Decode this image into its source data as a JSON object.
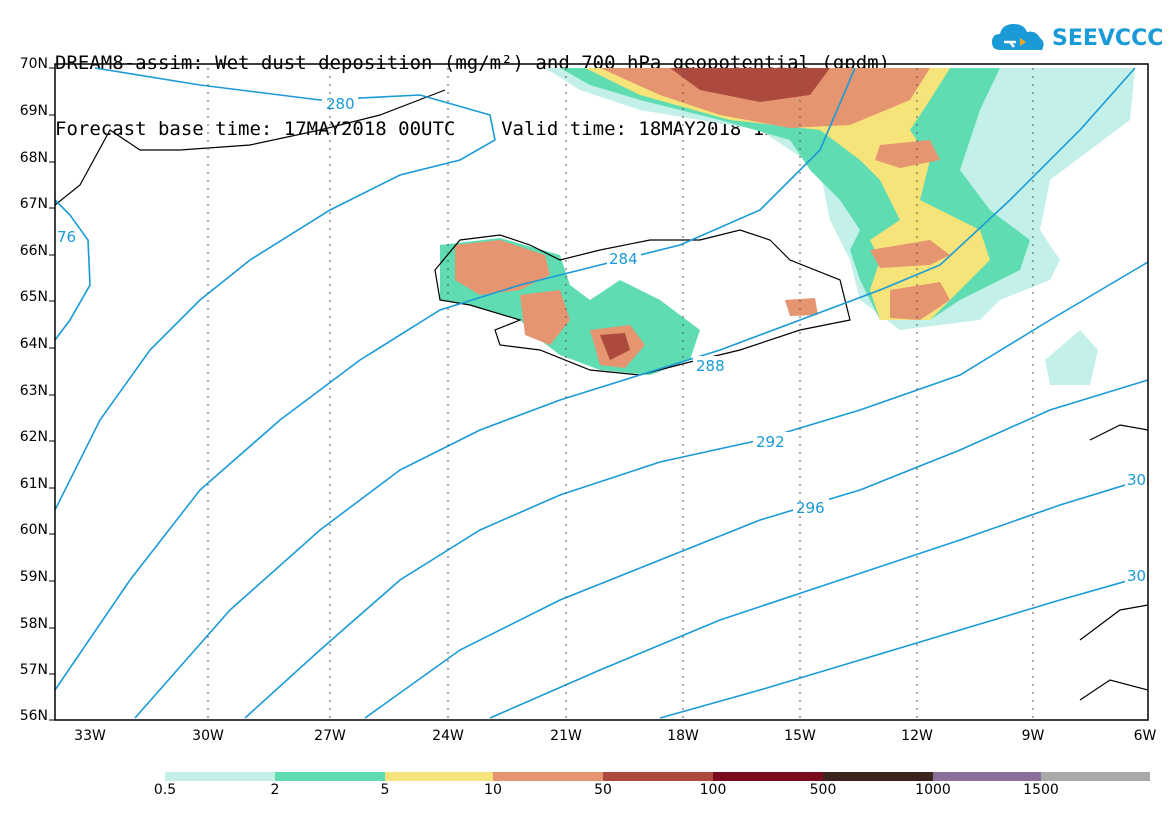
{
  "header": {
    "title": "DREAM8-assim: Wet dust deposition (mg/m²) and 700 hPa geopotential (gpdm)",
    "subtitle": "Forecast base time: 17MAY2018 00UTC    Valid time: 18MAY2018 12UTC"
  },
  "logo": {
    "text": "SEEVCCC",
    "icon": "cloud-icon",
    "color": "#1a9ad6"
  },
  "axes": {
    "lat_labels": [
      "70N",
      "69N",
      "68N",
      "67N",
      "66N",
      "65N",
      "64N",
      "63N",
      "62N",
      "61N",
      "60N",
      "59N",
      "58N",
      "57N",
      "56N"
    ],
    "lon_labels": [
      "33W",
      "30W",
      "27W",
      "24W",
      "21W",
      "18W",
      "15W",
      "12W",
      "9W",
      "6W"
    ]
  },
  "contours": {
    "color": "#1a9ad6",
    "labels": [
      "280",
      "76",
      "284",
      "288",
      "292",
      "296",
      "30",
      "30"
    ]
  },
  "legend": {
    "colors": [
      "#c4f0ea",
      "#5fdcb2",
      "#f6e37a",
      "#e59670",
      "#ad4a3e",
      "#7a0a1e",
      "#3a241b",
      "#8a6e9c",
      "#a9a9a9"
    ],
    "labels": [
      "0.5",
      "2",
      "5",
      "10",
      "50",
      "100",
      "500",
      "1000",
      "1500"
    ]
  }
}
